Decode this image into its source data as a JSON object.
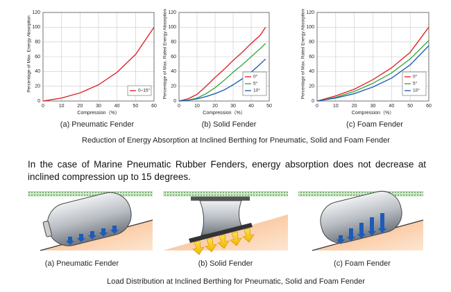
{
  "chart_data": [
    {
      "type": "line",
      "caption": "(a) Pneumatic Fender",
      "xlabel": "Compression（%）",
      "ylabel": "Percentage of Max. Energy Absorption",
      "x": [
        0,
        10,
        20,
        30,
        40,
        50,
        60
      ],
      "xlim": [
        0,
        60
      ],
      "xticks": [
        0,
        10,
        20,
        30,
        40,
        50,
        60
      ],
      "ylim": [
        0,
        120
      ],
      "yticks": [
        0,
        20,
        40,
        60,
        80,
        100,
        120
      ],
      "grid": true,
      "legend": "lower right",
      "series": [
        {
          "name": "0~15°",
          "color": "#e0262b",
          "values": [
            0,
            4,
            11,
            22,
            39,
            63,
            100
          ]
        }
      ]
    },
    {
      "type": "line",
      "caption": "(b) Solid Fender",
      "xlabel": "Compression（%）",
      "ylabel": "Percentage of Max. Rated Energy Absorption",
      "x": [
        0,
        5,
        10,
        15,
        20,
        25,
        30,
        35,
        40,
        45,
        48
      ],
      "xlim": [
        0,
        50
      ],
      "xticks": [
        0,
        10,
        20,
        30,
        40,
        50
      ],
      "ylim": [
        0,
        120
      ],
      "yticks": [
        0,
        20,
        40,
        60,
        80,
        100,
        120
      ],
      "grid": true,
      "legend": "lower right",
      "series": [
        {
          "name": "0°",
          "color": "#e0262b",
          "values": [
            0,
            3,
            9,
            20,
            32,
            43,
            55,
            66,
            78,
            89,
            100
          ]
        },
        {
          "name": "5°",
          "color": "#3aa845",
          "values": [
            0,
            1,
            4,
            10,
            18,
            28,
            39,
            49,
            60,
            71,
            78
          ]
        },
        {
          "name": "10°",
          "color": "#1f5fb5",
          "values": [
            0,
            1,
            3,
            6,
            10,
            15,
            22,
            30,
            39,
            50,
            57
          ]
        }
      ]
    },
    {
      "type": "line",
      "caption": "(c) Foam Fender",
      "xlabel": "Compression（%）",
      "ylabel": "Percentage of Max. Rated Energy Absorption",
      "x": [
        0,
        10,
        20,
        30,
        40,
        50,
        60
      ],
      "xlim": [
        0,
        60
      ],
      "xticks": [
        0,
        10,
        20,
        30,
        40,
        50,
        60
      ],
      "ylim": [
        0,
        120
      ],
      "yticks": [
        0,
        20,
        40,
        60,
        80,
        100,
        120
      ],
      "grid": true,
      "legend": "lower right",
      "series": [
        {
          "name": "0°",
          "color": "#e0262b",
          "values": [
            0,
            7,
            16,
            29,
            45,
            66,
            100
          ]
        },
        {
          "name": "5°",
          "color": "#3aa845",
          "values": [
            0,
            5,
            13,
            24,
            38,
            57,
            82
          ]
        },
        {
          "name": "10°",
          "color": "#1f5fb5",
          "values": [
            0,
            4,
            10,
            19,
            31,
            49,
            75
          ]
        }
      ]
    }
  ],
  "figure_caption_top": "Reduction of Energy Absorption at Inclined Berthing for Pneumatic, Solid and Foam Fender",
  "paragraph": "In the case of  Marine  Pneumatic Rubber Fenders, energy absorption does not decrease at inclined compression up to 15 degrees.",
  "illustrations": [
    "(a) Pneumatic Fender",
    "(b) Solid Fender",
    "(c) Foam Fender"
  ],
  "figure_caption_bottom": "Load Distribution at Inclined Berthing for Pneumatic, Solid and Foam Fender"
}
